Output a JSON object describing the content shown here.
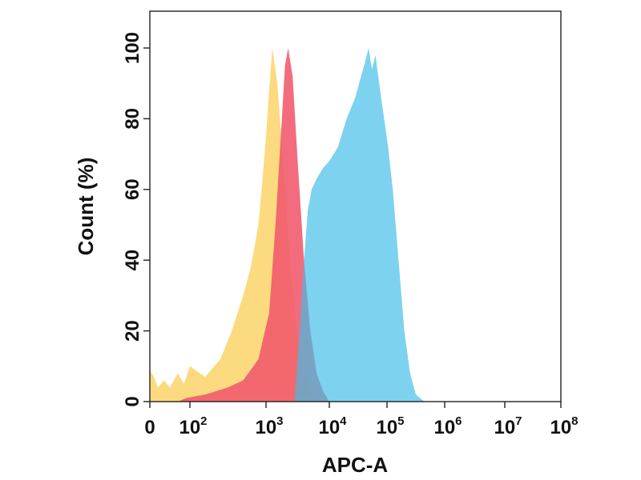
{
  "chart_data": {
    "type": "area",
    "xlabel": "APC-A",
    "ylabel": "Count  (%)",
    "xscale": "biexponential",
    "xticks": [
      {
        "base": "0",
        "exp": ""
      },
      {
        "base": "10",
        "exp": "2"
      },
      {
        "base": "10",
        "exp": "3"
      },
      {
        "base": "10",
        "exp": "4"
      },
      {
        "base": "10",
        "exp": "5"
      },
      {
        "base": "10",
        "exp": "6"
      },
      {
        "base": "10",
        "exp": "7"
      },
      {
        "base": "10",
        "exp": "8"
      }
    ],
    "ylim": [
      0,
      100
    ],
    "yticks": [
      0,
      20,
      40,
      60,
      80,
      100
    ],
    "grid": false,
    "series": [
      {
        "color": "#fcd468",
        "opacity": 0.85,
        "points": [
          [
            0,
            9
          ],
          [
            0.2,
            7
          ],
          [
            0.4,
            4
          ],
          [
            0.7,
            6
          ],
          [
            1.0,
            4
          ],
          [
            1.4,
            8
          ],
          [
            1.7,
            5
          ],
          [
            2.0,
            10
          ],
          [
            2.2,
            7
          ],
          [
            2.4,
            12
          ],
          [
            2.55,
            20
          ],
          [
            2.7,
            30
          ],
          [
            2.8,
            38
          ],
          [
            2.9,
            50
          ],
          [
            2.95,
            62
          ],
          [
            3.0,
            75
          ],
          [
            3.05,
            88
          ],
          [
            3.1,
            100
          ],
          [
            3.18,
            90
          ],
          [
            3.3,
            60
          ],
          [
            3.4,
            35
          ],
          [
            3.5,
            18
          ],
          [
            3.6,
            8
          ],
          [
            3.7,
            3
          ],
          [
            3.85,
            0
          ]
        ]
      },
      {
        "color": "#f0586c",
        "opacity": 0.88,
        "points": [
          [
            1.4,
            0
          ],
          [
            1.8,
            1
          ],
          [
            2.2,
            2
          ],
          [
            2.5,
            4
          ],
          [
            2.7,
            6
          ],
          [
            2.9,
            12
          ],
          [
            3.05,
            25
          ],
          [
            3.15,
            50
          ],
          [
            3.25,
            80
          ],
          [
            3.3,
            95
          ],
          [
            3.35,
            100
          ],
          [
            3.42,
            92
          ],
          [
            3.5,
            68
          ],
          [
            3.6,
            40
          ],
          [
            3.7,
            20
          ],
          [
            3.8,
            8
          ],
          [
            3.9,
            3
          ],
          [
            4.0,
            0
          ]
        ]
      },
      {
        "color": "#40bce8",
        "opacity": 0.68,
        "points": [
          [
            3.45,
            0
          ],
          [
            3.55,
            25
          ],
          [
            3.6,
            40
          ],
          [
            3.66,
            54
          ],
          [
            3.72,
            60
          ],
          [
            3.8,
            63
          ],
          [
            3.9,
            66
          ],
          [
            4.0,
            68
          ],
          [
            4.15,
            72
          ],
          [
            4.3,
            80
          ],
          [
            4.45,
            86
          ],
          [
            4.55,
            92
          ],
          [
            4.62,
            96
          ],
          [
            4.68,
            100
          ],
          [
            4.74,
            94
          ],
          [
            4.8,
            98
          ],
          [
            4.88,
            88
          ],
          [
            4.95,
            80
          ],
          [
            5.02,
            72
          ],
          [
            5.1,
            60
          ],
          [
            5.2,
            40
          ],
          [
            5.3,
            20
          ],
          [
            5.4,
            8
          ],
          [
            5.5,
            2
          ],
          [
            5.65,
            0
          ]
        ]
      }
    ]
  }
}
